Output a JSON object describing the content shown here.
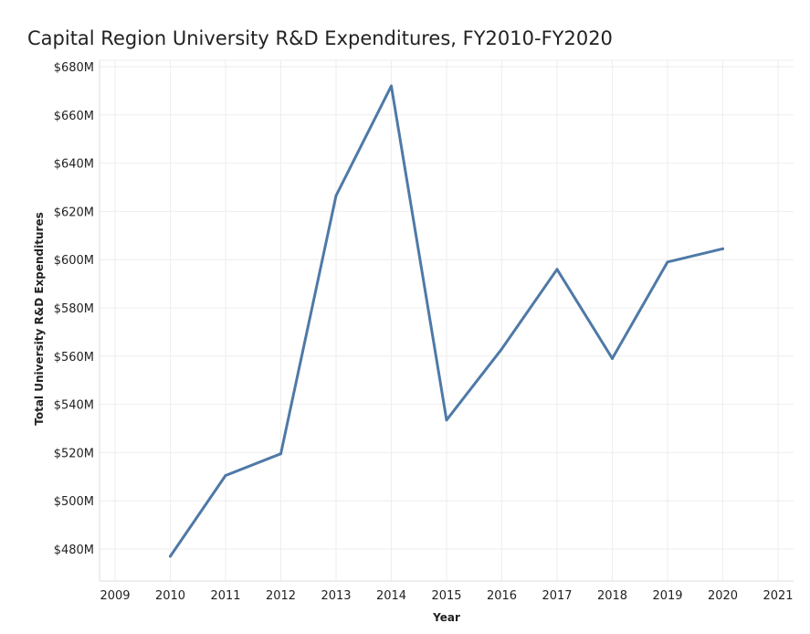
{
  "chart_data": {
    "type": "line",
    "title": "Capital Region University R&D Expenditures, FY2010-FY2020",
    "xlabel": "Year",
    "ylabel": "Total University R&D Expenditures",
    "x_ticks": [
      "2009",
      "2010",
      "2011",
      "2012",
      "2013",
      "2014",
      "2015",
      "2016",
      "2017",
      "2018",
      "2019",
      "2020",
      "2021"
    ],
    "xlim": [
      2009,
      2021
    ],
    "y_ticks": [
      "$480M",
      "$500M",
      "$520M",
      "$540M",
      "$560M",
      "$580M",
      "$600M",
      "$620M",
      "$640M",
      "$660M",
      "$680M"
    ],
    "y_tick_values": [
      480,
      500,
      520,
      540,
      560,
      580,
      600,
      620,
      640,
      660,
      680
    ],
    "ylim": [
      467,
      682
    ],
    "grid": true,
    "series": [
      {
        "name": "Total University R&D Expenditures",
        "color": "#4e79a7",
        "x": [
          2010,
          2011,
          2012,
          2013,
          2014,
          2015,
          2016,
          2017,
          2018,
          2019,
          2020
        ],
        "values": [
          477,
          510.5,
          519.5,
          626.5,
          672,
          533.5,
          563,
          596,
          559,
          599,
          604.5
        ]
      }
    ]
  }
}
